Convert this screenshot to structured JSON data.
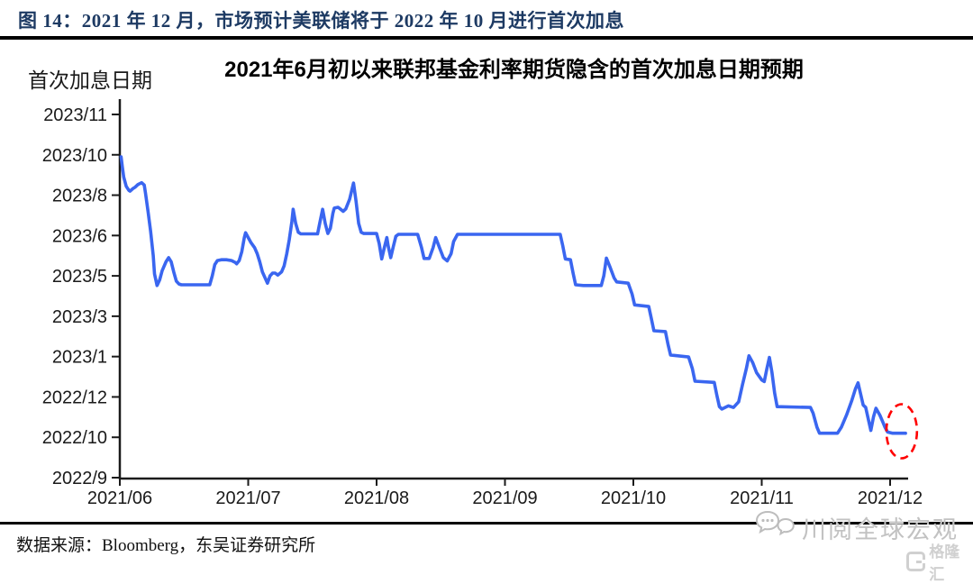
{
  "figure": {
    "title": "图 14：2021 年 12 月，市场预计美联储将于 2022 年 10 月进行首次加息",
    "source_note": "数据来源：Bloomberg，东吴证券研究所"
  },
  "watermarks": {
    "social_text": "川阅全球宏观",
    "logo_text": "格隆汇",
    "chat_bubbles_icon": "two-speech-bubbles"
  },
  "colors": {
    "figure_title": "#1d3a63",
    "line_blue": "#3a66f0",
    "annotation_red": "#ff0000",
    "axis_black": "#1a1a1a",
    "watermark_gray": "#c2c2c2"
  },
  "chart_data": {
    "type": "line",
    "title": "2021年6月初以来联邦基金利率期货隐含的首次加息日期预期",
    "y_axis_title": "首次加息日期",
    "grid": "off",
    "legend": "none",
    "x_axis": {
      "tick_labels": [
        "2021/06",
        "2021/07",
        "2021/08",
        "2021/09",
        "2021/10",
        "2021/11",
        "2021/12"
      ]
    },
    "y_axis": {
      "tick_labels_bottom_to_top": [
        "2022/9",
        "2022/10",
        "2022/12",
        "2023/1",
        "2023/3",
        "2023/5",
        "2023/6",
        "2023/8",
        "2023/10",
        "2023/11"
      ]
    },
    "units_note": "points are [x,y]; x = months after 2021/06 tick; y = position on the evenly-spaced y tick scale, 0 = 2022/9 ... 9 = 2023/11",
    "series": [
      {
        "name": "首次加息日期",
        "color": "#3a66f0",
        "points": [
          [
            0.01,
            7.95
          ],
          [
            0.02,
            7.7
          ],
          [
            0.03,
            7.45
          ],
          [
            0.05,
            7.22
          ],
          [
            0.07,
            7.12
          ],
          [
            0.08,
            7.1
          ],
          [
            0.1,
            7.16
          ],
          [
            0.12,
            7.2
          ],
          [
            0.14,
            7.26
          ],
          [
            0.17,
            7.31
          ],
          [
            0.19,
            7.25
          ],
          [
            0.2,
            7.05
          ],
          [
            0.22,
            6.6
          ],
          [
            0.24,
            6.1
          ],
          [
            0.26,
            5.5
          ],
          [
            0.27,
            5.05
          ],
          [
            0.29,
            4.76
          ],
          [
            0.31,
            4.9
          ],
          [
            0.33,
            5.13
          ],
          [
            0.36,
            5.35
          ],
          [
            0.38,
            5.45
          ],
          [
            0.4,
            5.35
          ],
          [
            0.42,
            5.1
          ],
          [
            0.44,
            4.87
          ],
          [
            0.46,
            4.8
          ],
          [
            0.48,
            4.78
          ],
          [
            0.7,
            4.78
          ],
          [
            0.72,
            5.0
          ],
          [
            0.74,
            5.28
          ],
          [
            0.76,
            5.38
          ],
          [
            0.79,
            5.4
          ],
          [
            0.83,
            5.4
          ],
          [
            0.87,
            5.38
          ],
          [
            0.9,
            5.33
          ],
          [
            0.91,
            5.3
          ],
          [
            0.93,
            5.38
          ],
          [
            0.95,
            5.6
          ],
          [
            0.97,
            5.95
          ],
          [
            0.98,
            6.07
          ],
          [
            1.0,
            5.95
          ],
          [
            1.02,
            5.83
          ],
          [
            1.05,
            5.7
          ],
          [
            1.07,
            5.55
          ],
          [
            1.09,
            5.35
          ],
          [
            1.11,
            5.1
          ],
          [
            1.15,
            4.82
          ],
          [
            1.17,
            5.0
          ],
          [
            1.19,
            5.07
          ],
          [
            1.21,
            5.07
          ],
          [
            1.23,
            5.02
          ],
          [
            1.26,
            5.1
          ],
          [
            1.28,
            5.25
          ],
          [
            1.3,
            5.55
          ],
          [
            1.32,
            5.9
          ],
          [
            1.34,
            6.35
          ],
          [
            1.35,
            6.65
          ],
          [
            1.37,
            6.3
          ],
          [
            1.39,
            6.08
          ],
          [
            1.41,
            6.04
          ],
          [
            1.54,
            6.04
          ],
          [
            1.56,
            6.35
          ],
          [
            1.58,
            6.65
          ],
          [
            1.6,
            6.3
          ],
          [
            1.62,
            6.05
          ],
          [
            1.64,
            6.18
          ],
          [
            1.66,
            6.55
          ],
          [
            1.67,
            6.68
          ],
          [
            1.7,
            6.7
          ],
          [
            1.72,
            6.65
          ],
          [
            1.74,
            6.6
          ],
          [
            1.76,
            6.66
          ],
          [
            1.79,
            6.9
          ],
          [
            1.82,
            7.3
          ],
          [
            1.84,
            6.85
          ],
          [
            1.86,
            6.3
          ],
          [
            1.88,
            6.08
          ],
          [
            1.9,
            6.05
          ],
          [
            2.0,
            6.05
          ],
          [
            2.02,
            5.8
          ],
          [
            2.04,
            5.42
          ],
          [
            2.06,
            5.7
          ],
          [
            2.08,
            5.95
          ],
          [
            2.09,
            5.75
          ],
          [
            2.11,
            5.45
          ],
          [
            2.13,
            5.72
          ],
          [
            2.15,
            5.98
          ],
          [
            2.17,
            6.03
          ],
          [
            2.32,
            6.03
          ],
          [
            2.35,
            5.7
          ],
          [
            2.37,
            5.43
          ],
          [
            2.41,
            5.43
          ],
          [
            2.44,
            5.7
          ],
          [
            2.46,
            5.95
          ],
          [
            2.49,
            5.7
          ],
          [
            2.52,
            5.45
          ],
          [
            2.55,
            5.37
          ],
          [
            2.58,
            5.55
          ],
          [
            2.6,
            5.85
          ],
          [
            2.63,
            6.03
          ],
          [
            3.43,
            6.03
          ],
          [
            3.45,
            5.75
          ],
          [
            3.47,
            5.42
          ],
          [
            3.51,
            5.4
          ],
          [
            3.53,
            5.08
          ],
          [
            3.55,
            4.78
          ],
          [
            3.61,
            4.76
          ],
          [
            3.75,
            4.76
          ],
          [
            3.77,
            5.0
          ],
          [
            3.79,
            5.44
          ],
          [
            3.82,
            5.2
          ],
          [
            3.85,
            4.95
          ],
          [
            3.87,
            4.85
          ],
          [
            3.96,
            4.82
          ],
          [
            3.99,
            4.55
          ],
          [
            4.01,
            4.28
          ],
          [
            4.12,
            4.24
          ],
          [
            4.14,
            3.95
          ],
          [
            4.16,
            3.64
          ],
          [
            4.25,
            3.62
          ],
          [
            4.27,
            3.3
          ],
          [
            4.29,
            3.04
          ],
          [
            4.43,
            2.99
          ],
          [
            4.46,
            2.7
          ],
          [
            4.48,
            2.39
          ],
          [
            4.63,
            2.36
          ],
          [
            4.65,
            2.05
          ],
          [
            4.67,
            1.76
          ],
          [
            4.69,
            1.7
          ],
          [
            4.74,
            1.78
          ],
          [
            4.78,
            1.74
          ],
          [
            4.82,
            1.88
          ],
          [
            4.85,
            2.3
          ],
          [
            4.88,
            2.7
          ],
          [
            4.9,
            3.02
          ],
          [
            4.93,
            2.85
          ],
          [
            4.96,
            2.6
          ],
          [
            5.0,
            2.42
          ],
          [
            5.02,
            2.38
          ],
          [
            5.04,
            2.7
          ],
          [
            5.06,
            2.98
          ],
          [
            5.08,
            2.6
          ],
          [
            5.1,
            2.1
          ],
          [
            5.12,
            1.76
          ],
          [
            5.38,
            1.74
          ],
          [
            5.4,
            1.6
          ],
          [
            5.43,
            1.25
          ],
          [
            5.45,
            1.1
          ],
          [
            5.59,
            1.1
          ],
          [
            5.62,
            1.25
          ],
          [
            5.66,
            1.55
          ],
          [
            5.7,
            1.9
          ],
          [
            5.73,
            2.2
          ],
          [
            5.75,
            2.35
          ],
          [
            5.77,
            2.08
          ],
          [
            5.79,
            1.8
          ],
          [
            5.81,
            1.74
          ],
          [
            5.83,
            1.45
          ],
          [
            5.85,
            1.17
          ],
          [
            5.87,
            1.5
          ],
          [
            5.89,
            1.72
          ],
          [
            5.92,
            1.55
          ],
          [
            5.94,
            1.4
          ],
          [
            5.96,
            1.25
          ],
          [
            5.98,
            1.13
          ],
          [
            6.02,
            1.1
          ],
          [
            6.12,
            1.1
          ]
        ]
      }
    ],
    "annotations": [
      {
        "type": "ellipse",
        "style": "dashed",
        "color": "#ff0000",
        "center_x": 6.09,
        "center_y": 1.15
      }
    ]
  }
}
